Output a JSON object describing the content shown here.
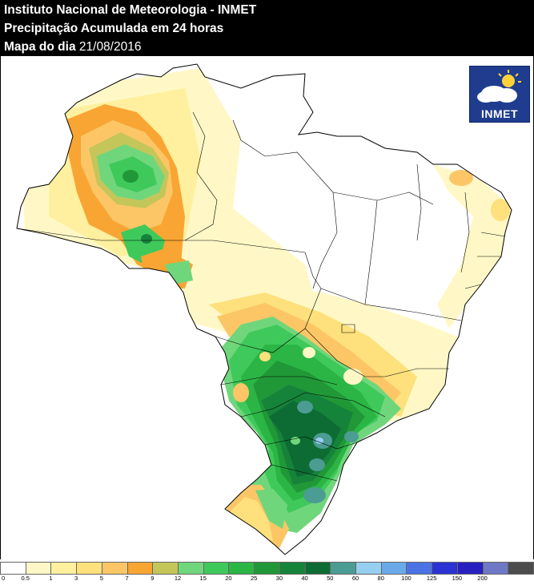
{
  "header": {
    "line1": "Instituto Nacional de Meteorologia - INMET",
    "line2": "Precipitação Acumulada em 24 horas",
    "line3_label": "Mapa do dia",
    "line3_date": "21/08/2016"
  },
  "logo": {
    "text": "INMET",
    "icon": "cloud-sun-icon"
  },
  "legend": {
    "colors": [
      "#ffffff",
      "#fff8c6",
      "#fef09e",
      "#fee07c",
      "#fcc666",
      "#f9a533",
      "#c4c65a",
      "#70d67c",
      "#3fc95a",
      "#2bb545",
      "#219837",
      "#16833b",
      "#0d6c33",
      "#4b9c92",
      "#96cfef",
      "#6aaae9",
      "#4a74e5",
      "#2b33d2",
      "#2620c0",
      "#6f78c4",
      "#4c4c4c"
    ],
    "labels": [
      "0",
      "0.5",
      "1",
      "3",
      "5",
      "7",
      "9",
      "12",
      "15",
      "20",
      "25",
      "30",
      "40",
      "50",
      "60",
      "80",
      "100",
      "125",
      "150",
      "200",
      ""
    ]
  }
}
